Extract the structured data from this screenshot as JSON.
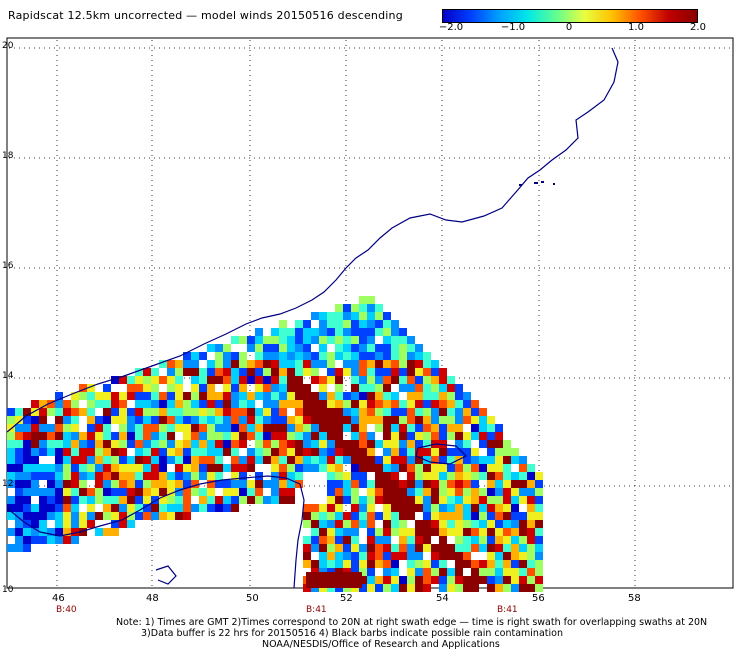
{
  "title": "Rapidscat 12.5km uncorrected — model winds 20150516 descending",
  "colorbar": {
    "ticks": [
      "−2.0",
      "−1.0",
      "0",
      "1.0",
      "2.0"
    ],
    "min": -2.0,
    "max": 2.0
  },
  "map": {
    "lon_range": [
      45,
      59.5
    ],
    "lat_range": [
      10,
      20
    ],
    "lon_ticks": [
      "46",
      "48",
      "50",
      "52",
      "54",
      "56",
      "58"
    ],
    "lat_ticks": [
      "20",
      "18",
      "16",
      "14",
      "12",
      "10"
    ],
    "rev_labels": [
      {
        "text": "B:40",
        "lon": 46
      },
      {
        "text": "B:41",
        "lon": 52
      },
      {
        "text": "B:41",
        "lon": 55.5
      }
    ],
    "grid": "dotted",
    "colors": {
      "coastline": "#000080",
      "grid": "#000000"
    }
  },
  "notes": {
    "line1": "Note: 1) Times are GMT 2)Times correspond to 20N at right swath edge — time is right swath for overlapping swaths at 20N",
    "line2": "3)Data buffer is 22 hrs for 20150516 4) Black barbs indicate possible rain contamination",
    "line3": "NOAA/NESDIS/Office of Research and Applications"
  }
}
